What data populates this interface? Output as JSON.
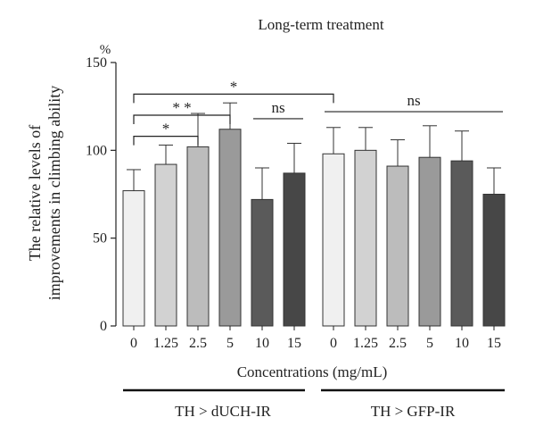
{
  "chart_data": {
    "type": "bar",
    "title": "Long-term treatment",
    "ylabel_lines": [
      "The relative levels of",
      "improvements in climbing ability"
    ],
    "y_unit": "%",
    "xlabel": "Concentrations (mg/mL)",
    "ylim": [
      0,
      150
    ],
    "yticks": [
      0,
      50,
      100,
      150
    ],
    "grid": false,
    "groups": [
      {
        "name": "TH > dUCH-IR",
        "categories": [
          "0",
          "1.25",
          "2.5",
          "5",
          "10",
          "15"
        ],
        "values": [
          77,
          92,
          102,
          112,
          72,
          87
        ],
        "errors": [
          12,
          11,
          19,
          15,
          18,
          17
        ],
        "colors": [
          "#f0f0f0",
          "#d2d2d2",
          "#bcbcbc",
          "#9a9a9a",
          "#5a5a5a",
          "#474747"
        ]
      },
      {
        "name": "TH > GFP-IR",
        "categories": [
          "0",
          "1.25",
          "2.5",
          "5",
          "10",
          "15"
        ],
        "values": [
          98,
          100,
          91,
          96,
          94,
          75
        ],
        "errors": [
          15,
          13,
          15,
          18,
          17,
          15
        ],
        "colors": [
          "#f0f0f0",
          "#d2d2d2",
          "#bcbcbc",
          "#9a9a9a",
          "#5a5a5a",
          "#474747"
        ]
      }
    ],
    "annotations": [
      {
        "label": "*",
        "from": [
          0,
          0
        ],
        "to": [
          0,
          2
        ],
        "level": 108
      },
      {
        "label": "* *",
        "from": [
          0,
          0
        ],
        "to": [
          0,
          3
        ],
        "level": 120
      },
      {
        "label": "*",
        "from": [
          0,
          0
        ],
        "to": [
          1,
          0
        ],
        "level": 132,
        "style": "drop_right"
      },
      {
        "label": "ns",
        "from": [
          0,
          4
        ],
        "to": [
          0,
          5
        ],
        "level": 118,
        "style": "line"
      },
      {
        "label": "ns",
        "from": [
          1,
          0
        ],
        "to": [
          1,
          5
        ],
        "level": 122,
        "style": "line"
      }
    ]
  }
}
